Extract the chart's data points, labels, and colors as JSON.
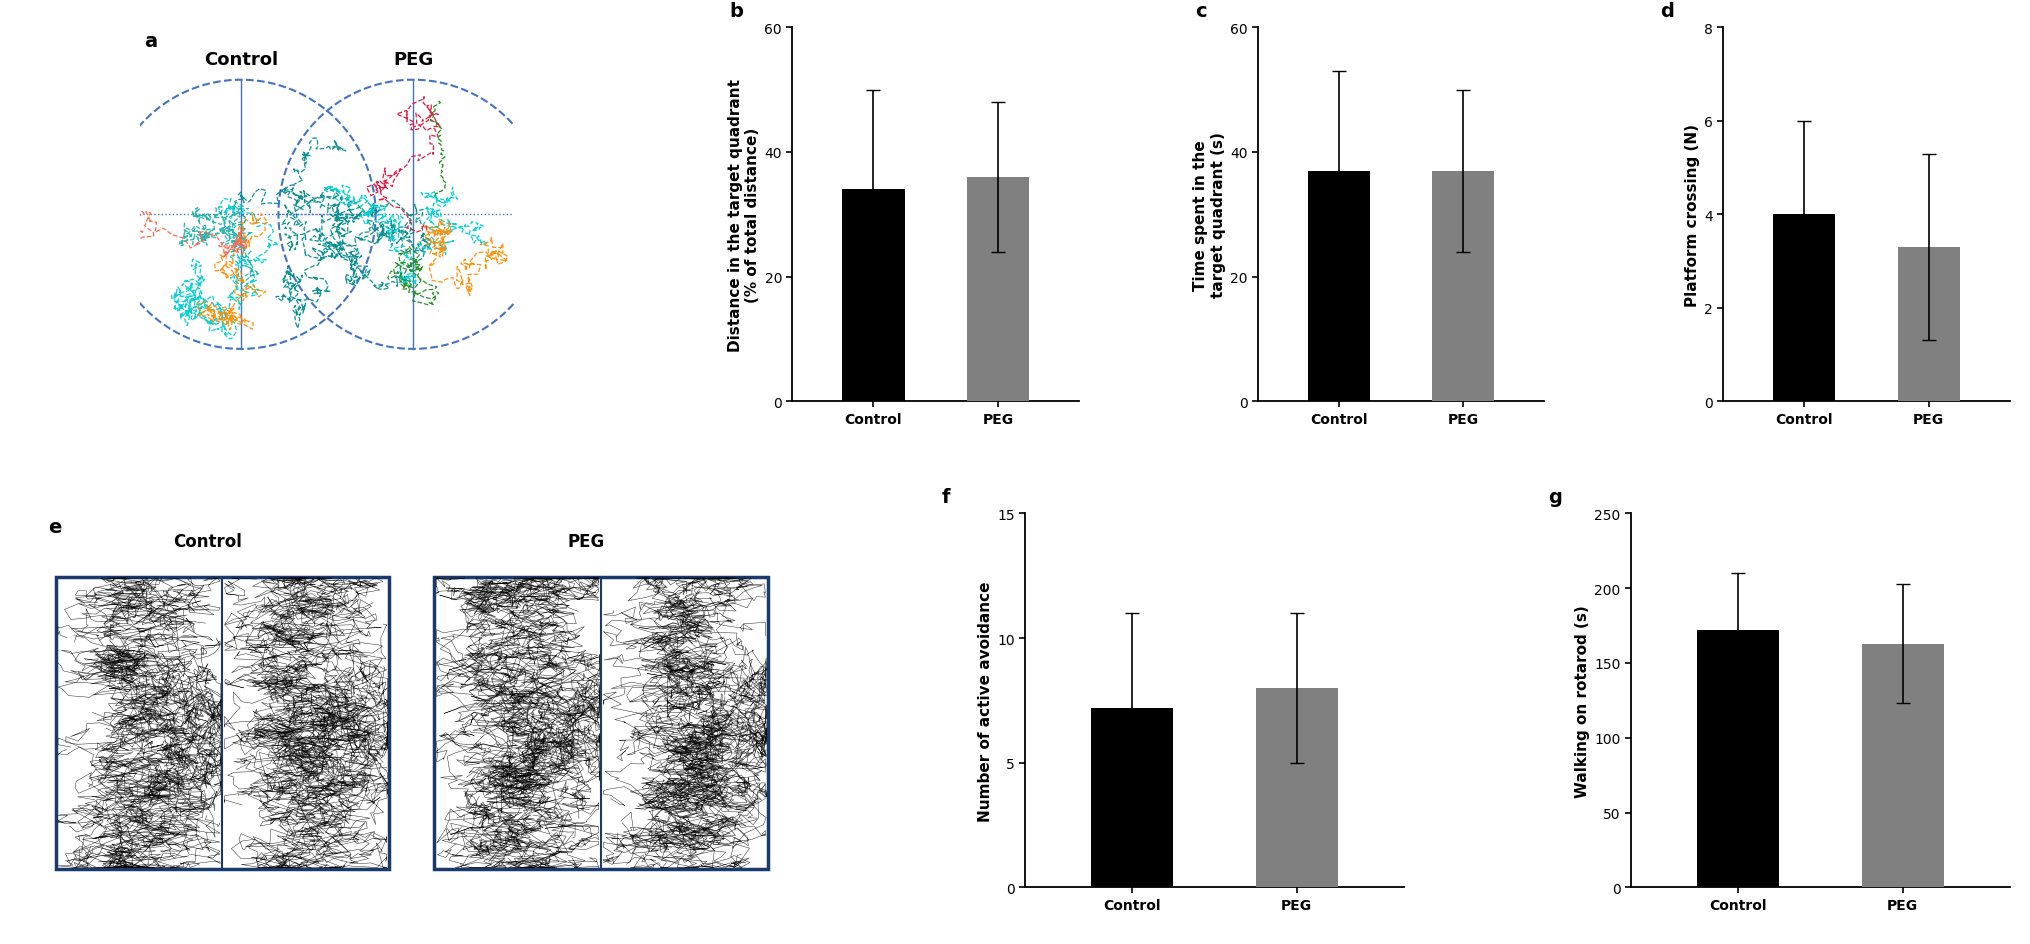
{
  "panel_b": {
    "categories": [
      "Control",
      "PEG"
    ],
    "values": [
      34.0,
      36.0
    ],
    "errors": [
      16.0,
      12.0
    ],
    "colors": [
      "#000000",
      "#808080"
    ],
    "ylabel": "Distance in the target quadrant\n(% of total distance)",
    "ylim": [
      0,
      60
    ],
    "yticks": [
      0,
      20,
      40,
      60
    ]
  },
  "panel_c": {
    "categories": [
      "Control",
      "PEG"
    ],
    "values": [
      37.0,
      37.0
    ],
    "errors": [
      16.0,
      13.0
    ],
    "colors": [
      "#000000",
      "#808080"
    ],
    "ylabel": "Time spent in the\ntarget quadrant (s)",
    "ylim": [
      0,
      60
    ],
    "yticks": [
      0,
      20,
      40,
      60
    ]
  },
  "panel_d": {
    "categories": [
      "Control",
      "PEG"
    ],
    "values": [
      4.0,
      3.3
    ],
    "errors": [
      2.0,
      2.0
    ],
    "colors": [
      "#000000",
      "#808080"
    ],
    "ylabel": "Platform crossing (N)",
    "ylim": [
      0,
      8
    ],
    "yticks": [
      0,
      2,
      4,
      6,
      8
    ]
  },
  "panel_f": {
    "categories": [
      "Control",
      "PEG"
    ],
    "values": [
      7.2,
      8.0
    ],
    "errors": [
      3.8,
      3.0
    ],
    "colors": [
      "#000000",
      "#808080"
    ],
    "ylabel": "Number of active avoidance",
    "ylim": [
      0,
      15
    ],
    "yticks": [
      0,
      5,
      10,
      15
    ]
  },
  "panel_g": {
    "categories": [
      "Control",
      "PEG"
    ],
    "values": [
      172.0,
      163.0
    ],
    "errors": [
      38.0,
      40.0
    ],
    "colors": [
      "#000000",
      "#808080"
    ],
    "ylabel": "Walking on rotarod (s)",
    "ylim": [
      0,
      250
    ],
    "yticks": [
      0,
      50,
      100,
      150,
      200,
      250
    ]
  },
  "bar_width": 0.5,
  "label_fontsize": 11,
  "tick_fontsize": 10,
  "panel_label_fontsize": 14,
  "circle_color": "#4472C4",
  "maze_colors_control": [
    "#008B8B",
    "#00CED1",
    "#20B2AA",
    "#FF8C00",
    "#FF6347"
  ],
  "maze_colors_peg": [
    "#008B8B",
    "#00CED1",
    "#FF8C00",
    "#DC143C",
    "#228B22"
  ]
}
